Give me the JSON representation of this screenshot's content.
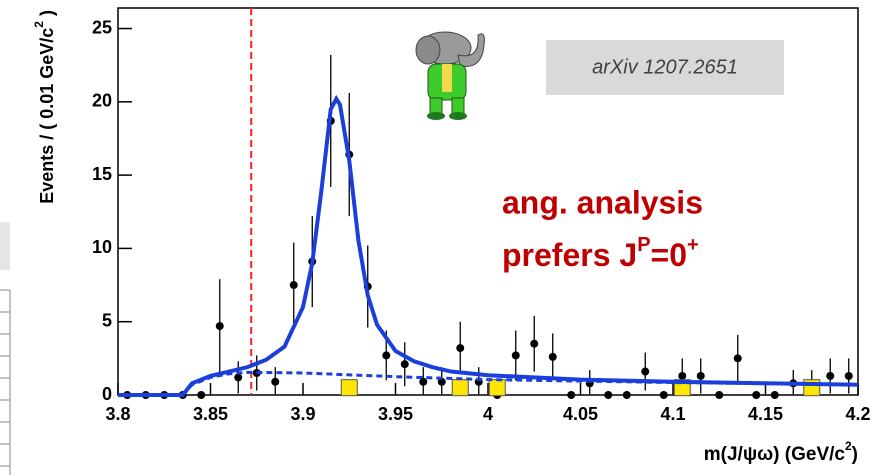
{
  "chart_data": {
    "type": "scatter",
    "xlim": [
      3.8,
      4.2
    ],
    "ylim": [
      0,
      26.4
    ],
    "xticks": [
      3.8,
      3.85,
      3.9,
      3.95,
      4,
      4.05,
      4.1,
      4.15,
      4.2
    ],
    "yticks": [
      0,
      5,
      10,
      15,
      20,
      25
    ],
    "x_label": [
      "m(J/ψω) (GeV/c",
      "2",
      ")"
    ],
    "y_label": [
      "Events / ( 0.01 GeV/c",
      "2",
      " )"
    ],
    "threshold_line": {
      "x": 3.872,
      "color": "#ff2020"
    },
    "annotations": {
      "reference": "arXiv 1207.2651",
      "result": [
        "ang. analysis",
        "prefers J",
        "P",
        "=0",
        "+"
      ]
    },
    "series": [
      {
        "style": "points",
        "color": "#000000",
        "x": [
          3.805,
          3.815,
          3.825,
          3.835,
          3.845,
          3.855,
          3.865,
          3.875,
          3.885,
          3.895,
          3.905,
          3.915,
          3.925,
          3.935,
          3.945,
          3.955,
          3.965,
          3.975,
          3.985,
          3.995,
          4.005,
          4.015,
          4.025,
          4.035,
          4.045,
          4.055,
          4.065,
          4.075,
          4.085,
          4.095,
          4.105,
          4.115,
          4.125,
          4.135,
          4.145,
          4.155,
          4.165,
          4.175,
          4.185,
          4.195
        ],
        "values": [
          0,
          0,
          0,
          0,
          0,
          4.7,
          1.2,
          1.5,
          0.9,
          7.5,
          9.1,
          18.7,
          16.4,
          7.4,
          2.7,
          2.1,
          0.9,
          0.9,
          3.2,
          0.9,
          0,
          2.7,
          3.5,
          2.6,
          0,
          0.8,
          0,
          0,
          1.6,
          0,
          1.3,
          1.3,
          0,
          2.5,
          0,
          0,
          0.8,
          0.8,
          1.3,
          1.3
        ],
        "errors": [
          null,
          null,
          null,
          null,
          null,
          3.2,
          1.1,
          1.2,
          1.0,
          2.9,
          3.1,
          4.5,
          4.2,
          2.8,
          1.7,
          1.5,
          1.0,
          1.0,
          1.8,
          1.0,
          null,
          1.7,
          1.9,
          1.6,
          null,
          0.9,
          null,
          null,
          1.3,
          null,
          1.2,
          1.2,
          null,
          1.6,
          null,
          null,
          0.9,
          0.9,
          1.2,
          1.2
        ]
      },
      {
        "style": "squares",
        "color": "#ffe600",
        "x": [
          3.925,
          3.985,
          4.005,
          4.105,
          4.175
        ],
        "values": [
          0.5,
          0.5,
          0.5,
          0.5,
          0.5
        ]
      },
      {
        "style": "line",
        "color": "#1a3fdc",
        "x": [
          3.8,
          3.835,
          3.84,
          3.85,
          3.86,
          3.87,
          3.88,
          3.89,
          3.9,
          3.905,
          3.91,
          3.915,
          3.918,
          3.92,
          3.925,
          3.93,
          3.935,
          3.94,
          3.95,
          3.96,
          3.97,
          3.98,
          4.0,
          4.05,
          4.1,
          4.15,
          4.2
        ],
        "values": [
          0,
          0,
          0.8,
          1.3,
          1.6,
          1.9,
          2.4,
          3.3,
          6,
          9,
          14,
          19.5,
          20.2,
          19.8,
          16,
          10.5,
          6.8,
          4.8,
          3.0,
          2.3,
          1.9,
          1.6,
          1.35,
          1.05,
          0.9,
          0.8,
          0.7
        ]
      },
      {
        "style": "dashed",
        "color": "#1a3fdc",
        "x": [
          3.835,
          3.84,
          3.85,
          3.86,
          3.87,
          3.9,
          3.95,
          4.0,
          4.05,
          4.1,
          4.15,
          4.2
        ],
        "values": [
          0,
          0.7,
          1.2,
          1.45,
          1.55,
          1.5,
          1.25,
          1.05,
          0.95,
          0.85,
          0.78,
          0.7
        ]
      }
    ]
  }
}
